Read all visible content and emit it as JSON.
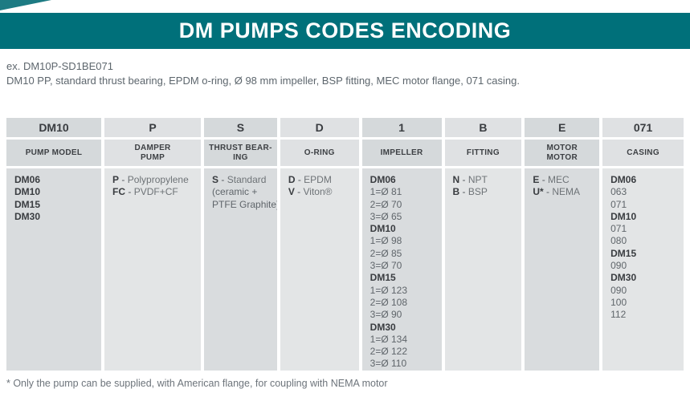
{
  "title": "DM PUMPS CODES ENCODING",
  "example": {
    "code_line": "ex. DM10P-SD1BE071",
    "description": "DM10 PP, standard thrust bearing, EPDM o-ring, Ø 98 mm impeller, BSP fitting, MEC motor flange, 071 casing."
  },
  "footnote": "* Only the pump can be supplied, with American flange, for coupling with NEMA motor",
  "colors": {
    "banner_teal": "#00707a",
    "header_cell_dark": "#d5d9db",
    "header_cell_light": "#dfe1e3",
    "body_cell_dark": "#d9dcde",
    "body_cell_light": "#e3e5e6",
    "code_text": "#393c40",
    "value_text": "#6e7377"
  },
  "table": {
    "separator": "-",
    "columns": [
      {
        "code": "DM10",
        "label": "PUMP MODEL",
        "shade": "dark",
        "body": [
          {
            "type": "bold",
            "text": "DM06"
          },
          {
            "type": "bold",
            "text": "DM10"
          },
          {
            "type": "bold",
            "text": "DM15"
          },
          {
            "type": "bold",
            "text": "DM30"
          }
        ]
      },
      {
        "code": "P",
        "label": "DAMPER\nPUMP",
        "shade": "light",
        "body": [
          {
            "type": "pair",
            "code": "P",
            "desc": "Polypropylene"
          },
          {
            "type": "pair",
            "code": "FC",
            "desc": "PVDF+CF"
          }
        ]
      },
      {
        "code": "S",
        "label": "THRUST BEAR-\nING",
        "shade": "dark",
        "body": [
          {
            "type": "pair",
            "code": "S",
            "desc": "Standard"
          },
          {
            "type": "plain",
            "text": "(ceramic +"
          },
          {
            "type": "plain",
            "text": "PTFE Graphite)"
          }
        ]
      },
      {
        "code": "D",
        "label": "O-RING",
        "shade": "light",
        "body": [
          {
            "type": "pair",
            "code": "D",
            "desc": "EPDM"
          },
          {
            "type": "pair",
            "code": "V",
            "desc": "Viton®"
          }
        ]
      },
      {
        "code": "1",
        "label": "IMPELLER",
        "shade": "dark",
        "body": [
          {
            "type": "bold",
            "text": "DM06"
          },
          {
            "type": "plain",
            "text": "1=Ø 81"
          },
          {
            "type": "plain",
            "text": "2=Ø 70"
          },
          {
            "type": "plain",
            "text": "3=Ø 65"
          },
          {
            "type": "bold",
            "text": "DM10"
          },
          {
            "type": "plain",
            "text": "1=Ø 98"
          },
          {
            "type": "plain",
            "text": "2=Ø 85"
          },
          {
            "type": "plain",
            "text": "3=Ø 70"
          },
          {
            "type": "bold",
            "text": "DM15"
          },
          {
            "type": "plain",
            "text": "1=Ø 123"
          },
          {
            "type": "plain",
            "text": "2=Ø 108"
          },
          {
            "type": "plain",
            "text": "3=Ø 90"
          },
          {
            "type": "bold",
            "text": "DM30"
          },
          {
            "type": "plain",
            "text": "1=Ø 134"
          },
          {
            "type": "plain",
            "text": "2=Ø 122"
          },
          {
            "type": "plain",
            "text": "3=Ø 110"
          }
        ]
      },
      {
        "code": "B",
        "label": "FITTING",
        "shade": "light",
        "body": [
          {
            "type": "pair",
            "code": "N",
            "desc": "NPT"
          },
          {
            "type": "pair",
            "code": "B",
            "desc": "BSP"
          }
        ]
      },
      {
        "code": "E",
        "label": "MOTOR\nMOTOR",
        "shade": "dark",
        "body": [
          {
            "type": "pair",
            "code": "E",
            "desc": "MEC"
          },
          {
            "type": "pair",
            "code": "U*",
            "desc": "NEMA"
          }
        ]
      },
      {
        "code": "071",
        "label": "CASING",
        "shade": "light",
        "body": [
          {
            "type": "bold",
            "text": "DM06"
          },
          {
            "type": "plain",
            "text": "063"
          },
          {
            "type": "plain",
            "text": "071"
          },
          {
            "type": "bold",
            "text": "DM10"
          },
          {
            "type": "plain",
            "text": "071"
          },
          {
            "type": "plain",
            "text": "080"
          },
          {
            "type": "bold",
            "text": "DM15"
          },
          {
            "type": "plain",
            "text": "090"
          },
          {
            "type": "bold",
            "text": "DM30"
          },
          {
            "type": "plain",
            "text": "090"
          },
          {
            "type": "plain",
            "text": "100"
          },
          {
            "type": "plain",
            "text": "112"
          }
        ]
      }
    ]
  }
}
